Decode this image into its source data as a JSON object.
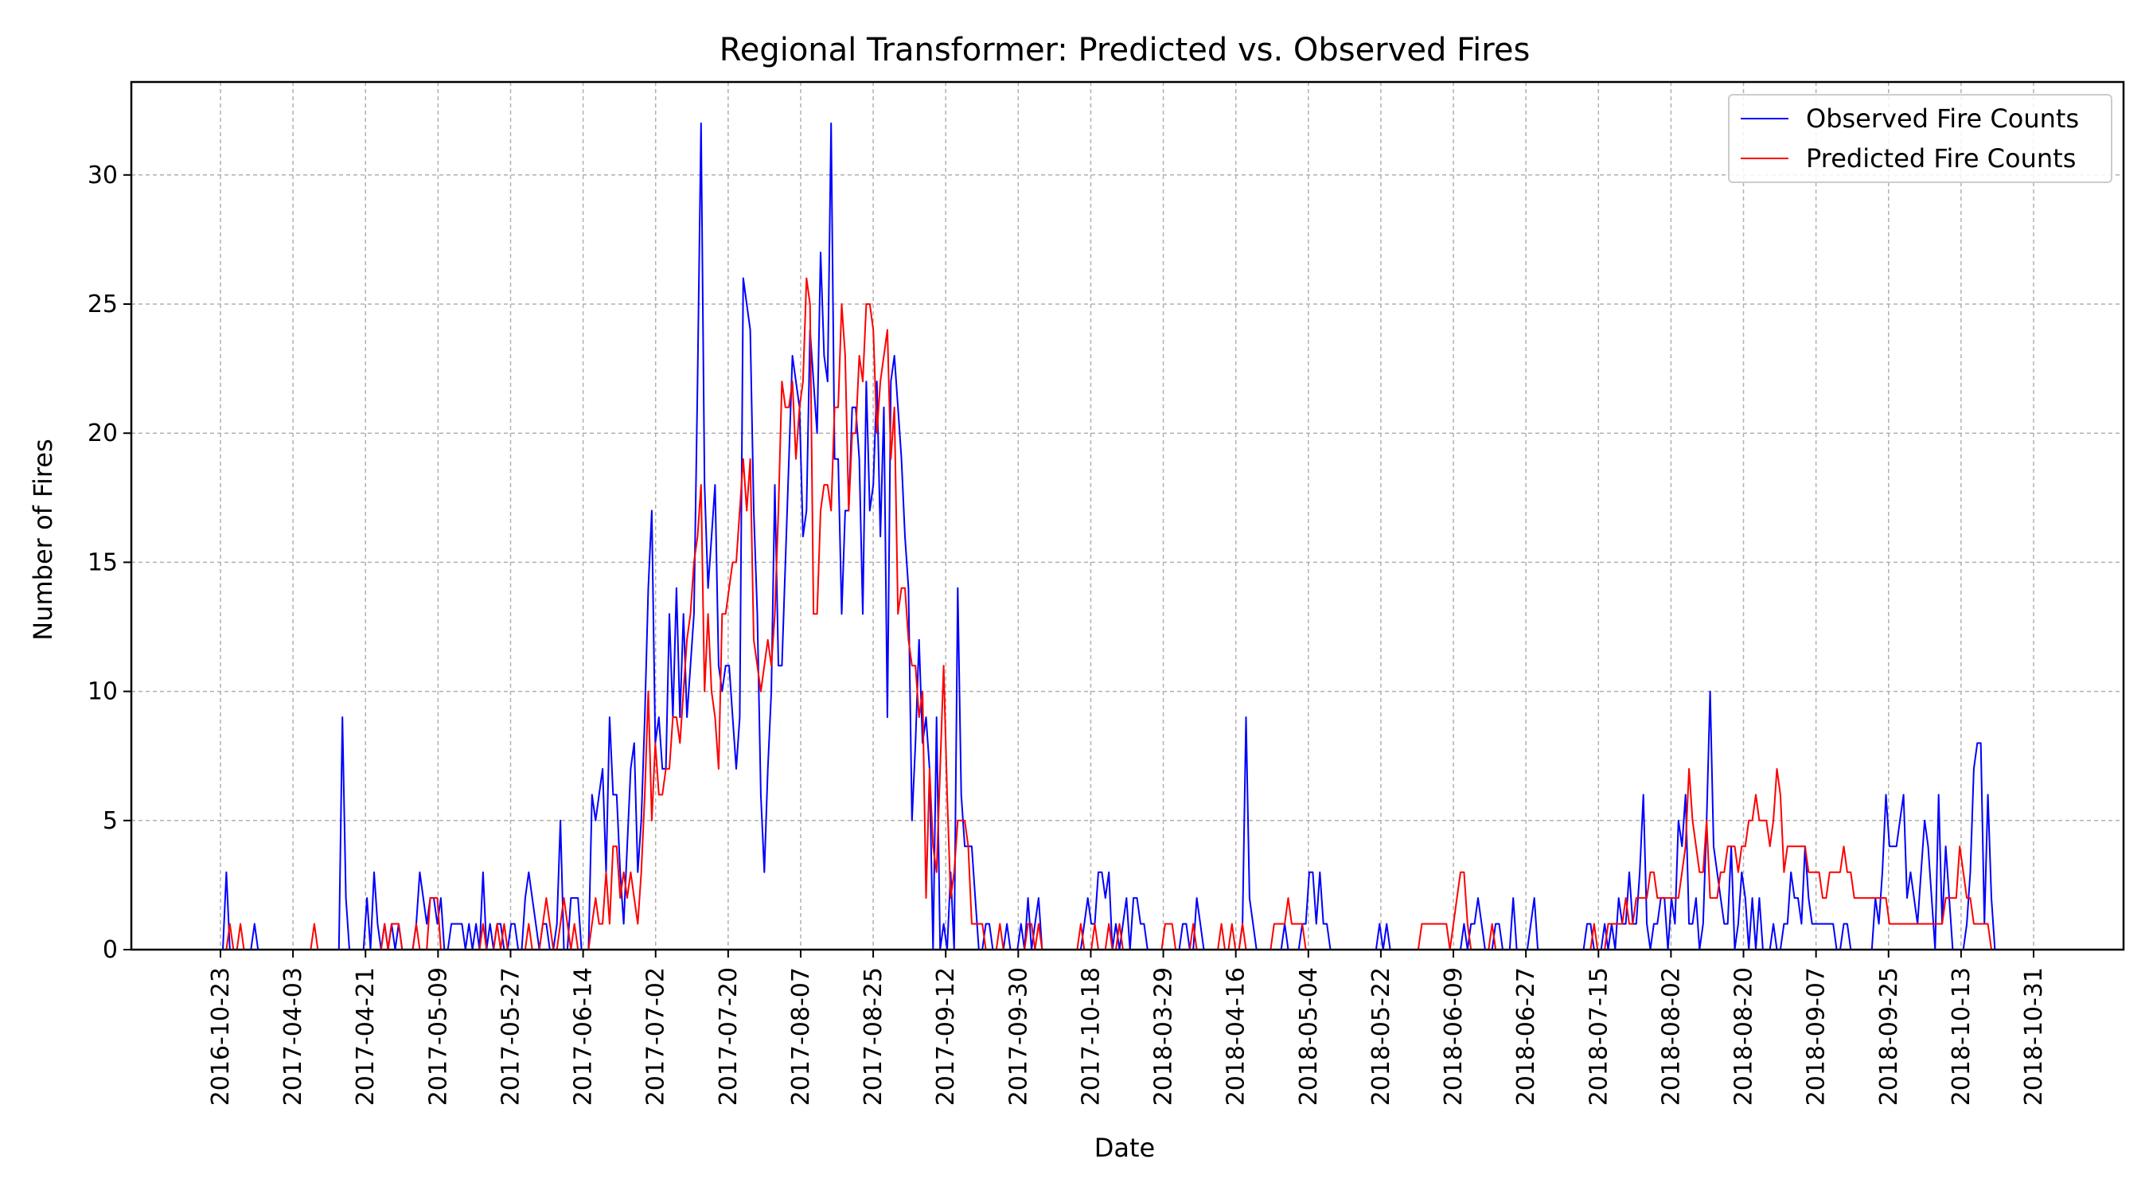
{
  "chart_data": {
    "type": "line",
    "title": "Regional Transformer: Predicted vs. Observed Fires",
    "xlabel": "Date",
    "ylabel": "Number of Fires",
    "x_ticks": [
      "2016-10-23",
      "2017-04-03",
      "2017-04-21",
      "2017-05-09",
      "2017-05-27",
      "2017-06-14",
      "2017-07-02",
      "2017-07-20",
      "2017-08-07",
      "2017-08-25",
      "2017-09-12",
      "2017-09-30",
      "2017-10-18",
      "2018-03-29",
      "2018-04-16",
      "2018-05-04",
      "2018-05-22",
      "2018-06-09",
      "2018-06-27",
      "2018-07-15",
      "2018-08-02",
      "2018-08-20",
      "2018-09-07",
      "2018-09-25",
      "2018-10-13",
      "2018-10-31"
    ],
    "y_ticks": [
      0,
      5,
      10,
      15,
      20,
      25,
      30
    ],
    "ylim": [
      0,
      33.6
    ],
    "grid": true,
    "legend_position": "top-right",
    "x_index_note_hidden": false,
    "series": [
      {
        "name": "Observed Fire Counts",
        "color": "#0000ff",
        "values": [
          0,
          3,
          0,
          0,
          0,
          0,
          0,
          0,
          0,
          1,
          0,
          0,
          0,
          0,
          0,
          0,
          0,
          0,
          0,
          0,
          0,
          0,
          0,
          0,
          0,
          0,
          0,
          0,
          0,
          0,
          0,
          0,
          0,
          0,
          9,
          2,
          0,
          0,
          0,
          0,
          0,
          2,
          0,
          3,
          1,
          0,
          1,
          0,
          1,
          0,
          1,
          0,
          0,
          0,
          0,
          1,
          3,
          2,
          1,
          2,
          2,
          1,
          2,
          0,
          0,
          1,
          1,
          1,
          1,
          0,
          1,
          0,
          1,
          0,
          3,
          0,
          1,
          0,
          1,
          1,
          0,
          0,
          1,
          1,
          0,
          0,
          2,
          3,
          2,
          1,
          0,
          1,
          1,
          0,
          0,
          1,
          5,
          0,
          0,
          2,
          2,
          2,
          0,
          0,
          0,
          6,
          5,
          6,
          7,
          3,
          9,
          6,
          6,
          3,
          1,
          4,
          7,
          8,
          3,
          5,
          9,
          14,
          17,
          8,
          9,
          7,
          7,
          13,
          9,
          14,
          9,
          13,
          9,
          11,
          13,
          22,
          32,
          18,
          14,
          16,
          18,
          11,
          10,
          11,
          11,
          9,
          7,
          9,
          26,
          25,
          24,
          17,
          13,
          6,
          3,
          7,
          10,
          18,
          11,
          11,
          15,
          19,
          23,
          22,
          21,
          16,
          17,
          24,
          22,
          20,
          27,
          23,
          22,
          32,
          19,
          19,
          13,
          17,
          17,
          21,
          21,
          19,
          13,
          22,
          17,
          18,
          22,
          16,
          21,
          9,
          22,
          23,
          21,
          19,
          16,
          14,
          5,
          8,
          12,
          8,
          9,
          7,
          0,
          9,
          0,
          1,
          0,
          3,
          0,
          14,
          6,
          4,
          4,
          4,
          2,
          0,
          0,
          1,
          1,
          0,
          0,
          0,
          0,
          1,
          0,
          0,
          0,
          1,
          0,
          2,
          0,
          1,
          2,
          0,
          0,
          0,
          0,
          0,
          0,
          0,
          0,
          0,
          0,
          0,
          0,
          1,
          2,
          1,
          1,
          3,
          3,
          2,
          3,
          0,
          1,
          0,
          1,
          2,
          0,
          2,
          2,
          1,
          1,
          0,
          0,
          0,
          0,
          0,
          0,
          0,
          0,
          0,
          0,
          1,
          1,
          0,
          0,
          2,
          1,
          0,
          0,
          0,
          0,
          0,
          0,
          0,
          0,
          0,
          0,
          0,
          1,
          9,
          2,
          1,
          0,
          0,
          0,
          0,
          0,
          0,
          0,
          0,
          1,
          0,
          0,
          0,
          0,
          1,
          1,
          3,
          3,
          1,
          3,
          1,
          1,
          0,
          0,
          0,
          0,
          0,
          0,
          0,
          0,
          0,
          0,
          0,
          0,
          0,
          0,
          1,
          0,
          1,
          0,
          0,
          0,
          0,
          0,
          0,
          0,
          0,
          0,
          0,
          0,
          0,
          0,
          0,
          0,
          0,
          0,
          0,
          0,
          0,
          0,
          1,
          0,
          1,
          1,
          2,
          1,
          0,
          0,
          0,
          1,
          1,
          0,
          0,
          0,
          2,
          0,
          0,
          0,
          0,
          1,
          2,
          0,
          0,
          0,
          0,
          0,
          0,
          0,
          0,
          0,
          0,
          0,
          0,
          0,
          0,
          1,
          1,
          0,
          0,
          0,
          1,
          0,
          1,
          0,
          2,
          1,
          1,
          3,
          1,
          1,
          3,
          6,
          1,
          0,
          1,
          1,
          2,
          2,
          0,
          2,
          1,
          5,
          4,
          6,
          1,
          1,
          2,
          0,
          1,
          5,
          10,
          4,
          3,
          2,
          1,
          1,
          4,
          0,
          1,
          3,
          2,
          0,
          2,
          0,
          2,
          0,
          0,
          0,
          1,
          0,
          0,
          1,
          1,
          3,
          2,
          2,
          1,
          4,
          2,
          1,
          1,
          1,
          1,
          1,
          1,
          1,
          0,
          0,
          1,
          1,
          0,
          0,
          0,
          0,
          0,
          0,
          0,
          2,
          1,
          3,
          6,
          4,
          4,
          4,
          5,
          6,
          2,
          3,
          2,
          1,
          3,
          5,
          4,
          2,
          0,
          6,
          1,
          4,
          2,
          0,
          0,
          0,
          0,
          1,
          3,
          7,
          8,
          8,
          1,
          6,
          2,
          0,
          0,
          0,
          0,
          0,
          0,
          0,
          0,
          0,
          0,
          0,
          0
        ]
      },
      {
        "name": "Predicted Fire Counts",
        "color": "#ff0000",
        "values": [
          0,
          0,
          1,
          0,
          0,
          1,
          0,
          0,
          0,
          0,
          0,
          0,
          0,
          0,
          0,
          0,
          0,
          0,
          0,
          0,
          0,
          0,
          0,
          0,
          0,
          0,
          1,
          0,
          0,
          0,
          0,
          0,
          0,
          0,
          0,
          0,
          0,
          0,
          0,
          0,
          0,
          0,
          0,
          0,
          0,
          0,
          1,
          0,
          1,
          1,
          1,
          0,
          0,
          0,
          0,
          1,
          0,
          0,
          0,
          2,
          2,
          2,
          0,
          0,
          0,
          0,
          0,
          0,
          0,
          0,
          0,
          0,
          0,
          0,
          1,
          0,
          0,
          0,
          1,
          0,
          1,
          0,
          0,
          0,
          0,
          0,
          0,
          1,
          0,
          0,
          0,
          1,
          2,
          1,
          0,
          0,
          1,
          2,
          1,
          0,
          1,
          0,
          0,
          0,
          0,
          1,
          2,
          1,
          1,
          3,
          1,
          4,
          4,
          2,
          3,
          2,
          3,
          2,
          1,
          3,
          6,
          10,
          5,
          8,
          6,
          6,
          7,
          7,
          9,
          9,
          8,
          10,
          12,
          13,
          15,
          16,
          18,
          10,
          13,
          10,
          9,
          7,
          13,
          13,
          14,
          15,
          15,
          17,
          19,
          17,
          19,
          12,
          11,
          10,
          11,
          12,
          11,
          13,
          17,
          22,
          21,
          21,
          22,
          19,
          21,
          22,
          26,
          25,
          13,
          13,
          17,
          18,
          18,
          17,
          21,
          21,
          25,
          23,
          17,
          20,
          20,
          23,
          22,
          25,
          25,
          24,
          20,
          22,
          23,
          24,
          19,
          21,
          13,
          14,
          14,
          12,
          11,
          11,
          9,
          10,
          2,
          7,
          4,
          3,
          7,
          11,
          6,
          2,
          3,
          5,
          5,
          5,
          4,
          1,
          1,
          1,
          1,
          0,
          0,
          0,
          0,
          1,
          0,
          0,
          0,
          0,
          0,
          0,
          0,
          1,
          1,
          0,
          1,
          0,
          0,
          0,
          0,
          0,
          0,
          0,
          0,
          0,
          0,
          0,
          1,
          0,
          0,
          0,
          1,
          0,
          0,
          0,
          1,
          0,
          0,
          1,
          0,
          0,
          0,
          0,
          0,
          0,
          0,
          0,
          0,
          0,
          0,
          0,
          1,
          1,
          1,
          0,
          0,
          0,
          0,
          0,
          1,
          0,
          0,
          0,
          0,
          0,
          0,
          0,
          1,
          0,
          0,
          1,
          0,
          0,
          1,
          0,
          0,
          0,
          0,
          0,
          0,
          0,
          0,
          1,
          1,
          1,
          1,
          2,
          1,
          1,
          1,
          1,
          0,
          0,
          0,
          0,
          0,
          0,
          0,
          0,
          0,
          0,
          0,
          0,
          0,
          0,
          0,
          0,
          0,
          0,
          0,
          0,
          0,
          0,
          0,
          0,
          0,
          0,
          0,
          0,
          0,
          0,
          0,
          0,
          0,
          1,
          1,
          1,
          1,
          1,
          1,
          1,
          1,
          0,
          1,
          2,
          3,
          3,
          1,
          0,
          0,
          0,
          0,
          0,
          0,
          1,
          0,
          0,
          0,
          0,
          0,
          0,
          0,
          0,
          0,
          0,
          0,
          0,
          0,
          0,
          0,
          0,
          0,
          0,
          0,
          0,
          0,
          0,
          0,
          0,
          0,
          0,
          0,
          0,
          1,
          0,
          0,
          0,
          1,
          1,
          1,
          1,
          1,
          2,
          1,
          1,
          2,
          2,
          2,
          2,
          3,
          3,
          2,
          2,
          2,
          2,
          2,
          2,
          2,
          3,
          4,
          7,
          5,
          4,
          3,
          3,
          5,
          2,
          2,
          2,
          3,
          3,
          4,
          4,
          4,
          3,
          4,
          4,
          5,
          5,
          6,
          5,
          5,
          5,
          4,
          5,
          7,
          6,
          3,
          4,
          4,
          4,
          4,
          4,
          4,
          3,
          3,
          3,
          3,
          2,
          2,
          3,
          3,
          3,
          3,
          4,
          3,
          3,
          2,
          2,
          2,
          2,
          2,
          2,
          2,
          2,
          2,
          2,
          1,
          1,
          1,
          1,
          1,
          1,
          1,
          1,
          1,
          1,
          1,
          1,
          1,
          1,
          1,
          1,
          2,
          2,
          2,
          2,
          4,
          3,
          2,
          2,
          1,
          1,
          1,
          1,
          1,
          0,
          0,
          0,
          0
        ]
      }
    ]
  }
}
